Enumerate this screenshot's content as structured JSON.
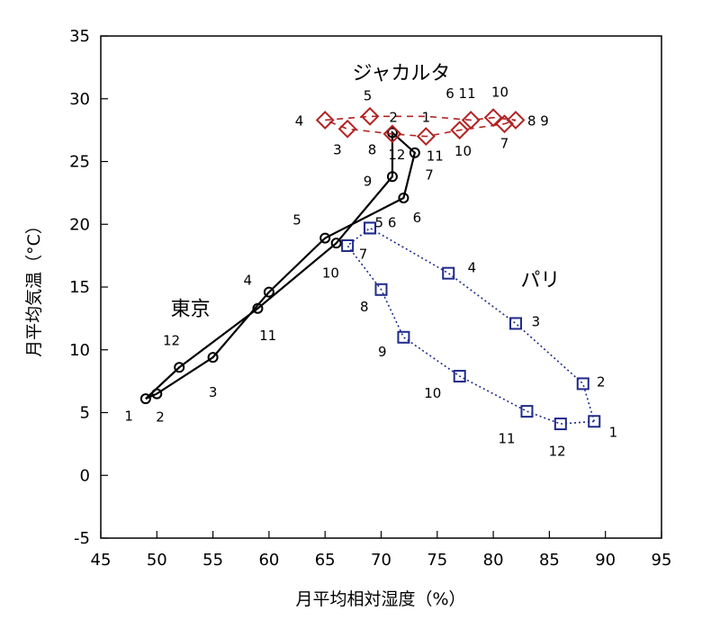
{
  "chart_data": {
    "type": "line",
    "xlabel": "月平均相対湿度（%）",
    "ylabel": "月平均気温（°C）",
    "xlim": [
      45,
      95
    ],
    "ylim": [
      -5,
      35
    ],
    "xticks": [
      "45",
      "50",
      "55",
      "60",
      "65",
      "70",
      "75",
      "80",
      "85",
      "90",
      "95"
    ],
    "yticks": [
      "-5",
      "0",
      "5",
      "10",
      "15",
      "20",
      "25",
      "30",
      "35"
    ],
    "grid": false,
    "series": [
      {
        "name": "東京",
        "color": "#000000",
        "marker": "circle",
        "dash": "solid",
        "title_pos": [
          53,
          13.3
        ],
        "path": [
          [
            49,
            6.1
          ],
          [
            50,
            6.5
          ],
          [
            55,
            9.4
          ],
          [
            60,
            14.6
          ],
          [
            65,
            18.9
          ],
          [
            72,
            22.1
          ],
          [
            73,
            25.7
          ],
          [
            71,
            27.3
          ],
          [
            71,
            23.8
          ],
          [
            66,
            18.5
          ],
          [
            59,
            13.3
          ],
          [
            52,
            8.6
          ],
          [
            49,
            6.1
          ]
        ],
        "points": [
          [
            49,
            6.1
          ],
          [
            50,
            6.5
          ],
          [
            55,
            9.4
          ],
          [
            60,
            14.6
          ],
          [
            65,
            18.9
          ],
          [
            72,
            22.1
          ],
          [
            73,
            25.7
          ],
          [
            71,
            27.3
          ],
          [
            71,
            23.8
          ],
          [
            66,
            18.5
          ],
          [
            59,
            13.3
          ],
          [
            52,
            8.6
          ]
        ],
        "labels": [
          {
            "text": "1",
            "x": 47.5,
            "y": 4.8
          },
          {
            "text": "2",
            "x": 50.3,
            "y": 4.7
          },
          {
            "text": "3",
            "x": 55,
            "y": 6.7
          },
          {
            "text": "4",
            "x": 58.1,
            "y": 15.6
          },
          {
            "text": "5",
            "x": 62.5,
            "y": 20.4
          },
          {
            "text": "6",
            "x": 73.2,
            "y": 20.6
          },
          {
            "text": "7",
            "x": 74.3,
            "y": 24.0
          },
          {
            "text": "9",
            "x": 68.8,
            "y": 23.5
          },
          {
            "text": "10",
            "x": 65.5,
            "y": 16.2
          },
          {
            "text": "11",
            "x": 59.9,
            "y": 11.2
          },
          {
            "text": "12",
            "x": 51.3,
            "y": 10.8
          }
        ]
      },
      {
        "name": "パリ",
        "color": "#1f2a8a",
        "marker": "square",
        "dash": "dotted",
        "title_pos": [
          84.2,
          15.6
        ],
        "path": [
          [
            89,
            4.3
          ],
          [
            88,
            7.3
          ],
          [
            82,
            12.1
          ],
          [
            76,
            16.1
          ],
          [
            69,
            19.7
          ],
          [
            67,
            18.3
          ],
          [
            70,
            14.8
          ],
          [
            72,
            11.0
          ],
          [
            77,
            7.9
          ],
          [
            83,
            5.1
          ],
          [
            86,
            4.1
          ],
          [
            89,
            4.3
          ]
        ],
        "points": [
          [
            89,
            4.3
          ],
          [
            88,
            7.3
          ],
          [
            82,
            12.1
          ],
          [
            76,
            16.1
          ],
          [
            69,
            19.7
          ],
          [
            69,
            19.7
          ],
          [
            67,
            18.3
          ],
          [
            70,
            14.8
          ],
          [
            72,
            11.0
          ],
          [
            77,
            7.9
          ],
          [
            83,
            5.1
          ],
          [
            86,
            4.1
          ]
        ],
        "labels": [
          {
            "text": "1",
            "x": 90.7,
            "y": 3.5
          },
          {
            "text": "2",
            "x": 89.6,
            "y": 7.5
          },
          {
            "text": "3",
            "x": 83.8,
            "y": 12.3
          },
          {
            "text": "4",
            "x": 78.1,
            "y": 16.6
          },
          {
            "text": "5 6",
            "x": 70.4,
            "y": 20.2
          },
          {
            "text": "7",
            "x": 68.4,
            "y": 17.7
          },
          {
            "text": "8",
            "x": 68.5,
            "y": 13.5
          },
          {
            "text": "9",
            "x": 70.1,
            "y": 9.9
          },
          {
            "text": "10",
            "x": 74.6,
            "y": 6.6
          },
          {
            "text": "11",
            "x": 81.2,
            "y": 3.0
          },
          {
            "text": "12",
            "x": 85.7,
            "y": 2.0
          }
        ]
      },
      {
        "name": "ジャカルタ",
        "color": "#b22222",
        "marker": "diamond",
        "dash": "dashed",
        "title_pos": [
          71.8,
          32.1
        ],
        "path": [
          [
            65,
            28.3
          ],
          [
            69,
            28.6
          ],
          [
            71,
            28.6
          ],
          [
            74,
            28.6
          ],
          [
            78,
            28.3
          ],
          [
            80,
            28.5
          ],
          [
            82,
            28.3
          ],
          [
            81,
            28.0
          ],
          [
            77,
            27.5
          ],
          [
            74,
            27.0
          ],
          [
            71,
            27.2
          ],
          [
            67,
            27.6
          ],
          [
            65,
            28.3
          ]
        ],
        "points": [
          [
            65,
            28.3
          ],
          [
            69,
            28.6
          ],
          [
            67,
            27.6
          ],
          [
            71,
            27.2
          ],
          [
            74,
            27.0
          ],
          [
            77,
            27.5
          ],
          [
            78,
            28.3
          ],
          [
            80,
            28.5
          ],
          [
            81,
            28.0
          ],
          [
            82,
            28.3
          ]
        ],
        "labels": [
          {
            "text": "4",
            "x": 62.7,
            "y": 28.3
          },
          {
            "text": "5",
            "x": 68.8,
            "y": 30.3
          },
          {
            "text": "2",
            "x": 71.1,
            "y": 28.6
          },
          {
            "text": "1",
            "x": 74,
            "y": 28.6
          },
          {
            "text": "3",
            "x": 66.1,
            "y": 26.0
          },
          {
            "text": "8",
            "x": 69.2,
            "y": 26.0
          },
          {
            "text": "12",
            "x": 71.4,
            "y": 25.6
          },
          {
            "text": "11",
            "x": 74.8,
            "y": 25.5
          },
          {
            "text": "10",
            "x": 77.3,
            "y": 25.9
          },
          {
            "text": "7",
            "x": 81,
            "y": 26.5
          },
          {
            "text": "8 9",
            "x": 84,
            "y": 28.3
          },
          {
            "text": "6 11",
            "x": 77.1,
            "y": 30.5
          },
          {
            "text": "10",
            "x": 80.6,
            "y": 30.6
          }
        ]
      }
    ]
  }
}
